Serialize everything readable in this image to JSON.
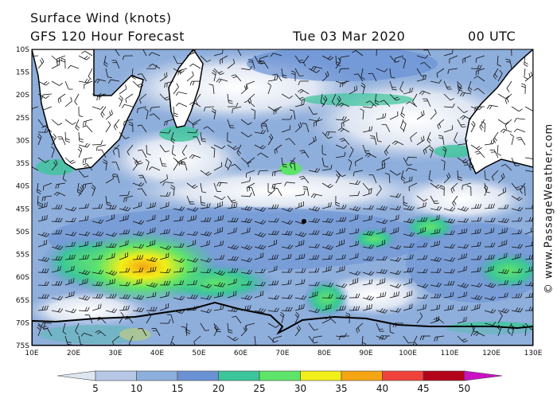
{
  "header": {
    "title": "Surface Wind (knots)",
    "subtitle": "GFS 120 Hour Forecast",
    "valid_date": "Tue 03 Mar 2020",
    "valid_time": "00 UTC"
  },
  "credit": "© www.PassageWeather.com",
  "map": {
    "lat_labels": [
      "10S",
      "15S",
      "20S",
      "25S",
      "30S",
      "35S",
      "40S",
      "45S",
      "50S",
      "55S",
      "60S",
      "65S",
      "70S",
      "75S"
    ],
    "lon_labels": [
      "10E",
      "20E",
      "30E",
      "40E",
      "50E",
      "60E",
      "70E",
      "80E",
      "90E",
      "100E",
      "110E",
      "120E",
      "130E"
    ]
  },
  "colorbar": {
    "ticks": [
      "5",
      "10",
      "15",
      "20",
      "25",
      "30",
      "35",
      "40",
      "45",
      "50"
    ],
    "colors": [
      "#dfe6f2",
      "#b6c8e6",
      "#8eaedc",
      "#6a91d4",
      "#3cc59a",
      "#5fe46a",
      "#f2ee19",
      "#f5a514",
      "#f0433c",
      "#b3041c",
      "#cc10c4"
    ]
  },
  "land_color": "#ffffff",
  "coast_color": "#000000"
}
